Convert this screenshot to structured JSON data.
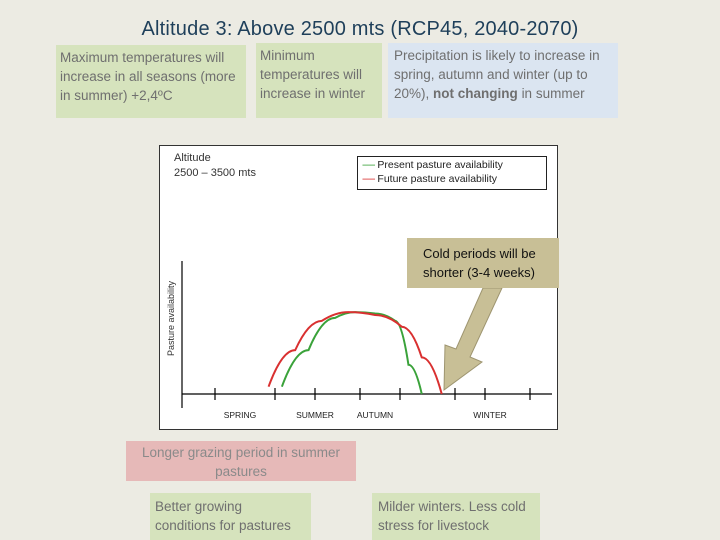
{
  "title": "Altitude 3: Above 2500 mts (RCP45, 2040-2070)",
  "boxes": {
    "max_temp": "Maximum temperatures will increase in all seasons (more in summer) +2,4ºC",
    "min_temp": "Minimum temperatures will increase in winter",
    "precip_1": "Precipitation is likely to increase in spring, autumn and winter (up to 20%),",
    "precip_bold": "not changing",
    "precip_2": "in summer",
    "longer_grazing": "Longer grazing period in summer pastures",
    "better_growing": "Better growing conditions for pastures",
    "milder_winters": "Milder winters. Less cold stress for livestock",
    "cold_periods": "Cold periods will be shorter (3-4 weeks)"
  },
  "chart_data": {
    "type": "line",
    "altitude_label_1": "Altitude",
    "altitude_label_2": "2500 – 3500 mts",
    "ylabel": "Pasture availability",
    "x_ticks": [
      "SPRING",
      "SUMMER",
      "AUTUMN",
      "WINTER"
    ],
    "legend": [
      {
        "dash": "-----",
        "label": "Present pasture availability",
        "color": "#3aa23a"
      },
      {
        "dash": "-----",
        "label": "Future pasture availability",
        "color": "#d93030"
      }
    ],
    "series": [
      {
        "color": "#3aa23a",
        "points": [
          [
            0.3,
            0.05
          ],
          [
            0.38,
            0.3
          ],
          [
            0.46,
            0.52
          ],
          [
            0.52,
            0.56
          ],
          [
            0.58,
            0.55
          ],
          [
            0.64,
            0.5
          ],
          [
            0.68,
            0.2
          ],
          [
            0.72,
            0.0
          ]
        ]
      },
      {
        "color": "#d93030",
        "points": [
          [
            0.26,
            0.05
          ],
          [
            0.34,
            0.3
          ],
          [
            0.42,
            0.5
          ],
          [
            0.5,
            0.56
          ],
          [
            0.58,
            0.54
          ],
          [
            0.66,
            0.46
          ],
          [
            0.72,
            0.25
          ],
          [
            0.78,
            0.0
          ]
        ]
      }
    ]
  },
  "colors": {
    "title": "#1e3f5a",
    "green_box": "#d6e3bd",
    "blue_box": "#dbe5f1",
    "pink_box": "#e6b9b8",
    "callout": "#c8bf96"
  }
}
